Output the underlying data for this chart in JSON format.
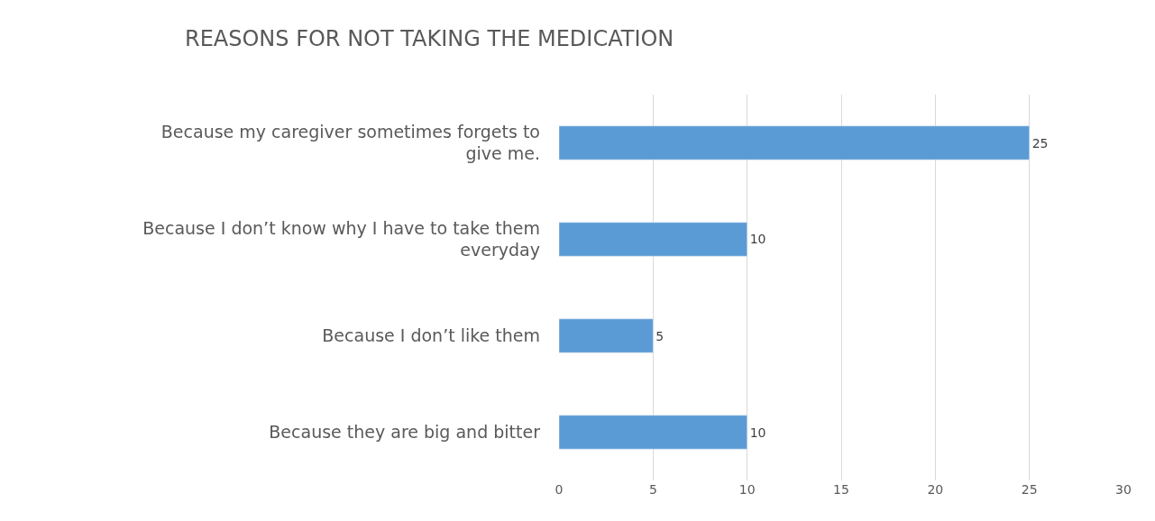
{
  "chart_data": {
    "type": "bar",
    "orientation": "horizontal",
    "title": "REASONS FOR NOT TAKING THE MEDICATION",
    "categories": [
      "Because my caregiver sometimes forgets to give me.",
      "Because I don’t know why I have to take them everyday",
      "Because I don’t like them",
      "Because they are big and bitter"
    ],
    "values": [
      25,
      10,
      5,
      10
    ],
    "color": "#5b9bd5",
    "xlim": [
      0,
      30
    ],
    "xticks": [
      0,
      5,
      10,
      15,
      20,
      25,
      30
    ],
    "grid": "x",
    "data_labels": true,
    "legend": false
  }
}
